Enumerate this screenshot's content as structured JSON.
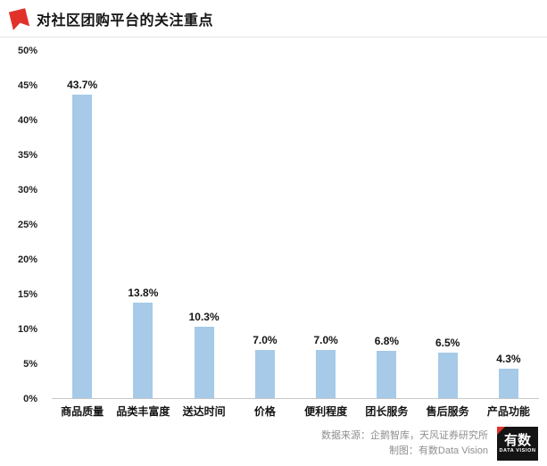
{
  "header": {
    "title": "对社区团购平台的关注重点"
  },
  "chart_data": {
    "type": "bar",
    "title": "对社区团购平台的关注重点",
    "categories": [
      "商品质量",
      "品类丰富度",
      "送达时间",
      "价格",
      "便利程度",
      "团长服务",
      "售后服务",
      "产品功能"
    ],
    "values": [
      43.7,
      13.8,
      10.3,
      7.0,
      7.0,
      6.8,
      6.5,
      4.3
    ],
    "value_labels": [
      "43.7%",
      "13.8%",
      "10.3%",
      "7.0%",
      "7.0%",
      "6.8%",
      "6.5%",
      "4.3%"
    ],
    "xlabel": "",
    "ylabel": "",
    "ylim": [
      0,
      50
    ],
    "y_ticks": [
      "0%",
      "5%",
      "10%",
      "15%",
      "20%",
      "25%",
      "30%",
      "35%",
      "40%",
      "45%",
      "50%"
    ],
    "grid": false,
    "legend_position": "none",
    "bar_color": "#A6CAE8"
  },
  "footer": {
    "source": "数据来源：企鹅智库，天风证券研究所",
    "credit": "制图：有数Data Vision",
    "logo_name": "有数",
    "logo_subtitle": "DATA VISION"
  },
  "colors": {
    "accent_red": "#E0322B",
    "bar_blue": "#A6CAE8",
    "text_dark": "#141414",
    "text_gray": "#8f8f8f"
  }
}
